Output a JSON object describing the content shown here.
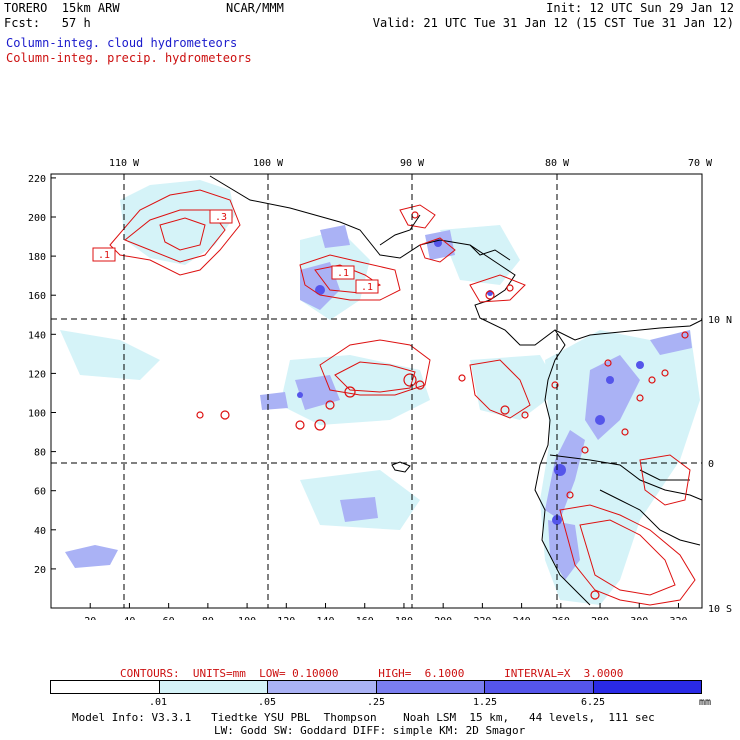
{
  "header": {
    "left_line1": "TORERO  15km ARW",
    "left_line2": "Fcst:   57 h",
    "center_line1": "NCAR/MMM",
    "right_line1": "Init: 12 UTC Sun 29 Jan 12",
    "right_line2": "Valid: 21 UTC Tue 31 Jan 12 (15 CST Tue 31 Jan 12)",
    "legend_cloud": "Column-integ. cloud hydrometeors",
    "legend_precip": "Column-integ. precip. hydrometeors"
  },
  "map": {
    "top_labels": [
      "110 W",
      "100 W",
      "90 W",
      "80 W",
      "70 W"
    ],
    "right_labels": [
      "10 N",
      "0",
      "10 S"
    ],
    "x_ticks": [
      "20",
      "40",
      "60",
      "80",
      "100",
      "120",
      "140",
      "160",
      "180",
      "200",
      "220",
      "240",
      "260",
      "280",
      "300",
      "320"
    ],
    "y_ticks": [
      "220",
      "200",
      "180",
      "160",
      "140",
      "120",
      "100",
      "80",
      "60",
      "40",
      "20"
    ],
    "contour_labels": [
      ".1",
      ".3",
      ".1",
      ".1"
    ]
  },
  "contour_info": "CONTOURS:  UNITS=mm  LOW= 0.10000      HIGH=  6.1000      INTERVAL=X  3.0000",
  "colorbar": {
    "colors": [
      "#ffffff",
      "#d5f3f8",
      "#aab2f5",
      "#7a7ef0",
      "#5555ea",
      "#2a2ae6"
    ],
    "labels": [
      ".01",
      ".05",
      ".25",
      "1.25",
      "6.25"
    ],
    "unit": "mm"
  },
  "footer": {
    "line1": "Model Info: V3.3.1   Tiedtke YSU PBL  Thompson    Noah LSM  15 km,   44 levels,  111 sec",
    "line2": "LW: Godd SW: Goddard DIFF: simple KM: 2D Smagor"
  }
}
